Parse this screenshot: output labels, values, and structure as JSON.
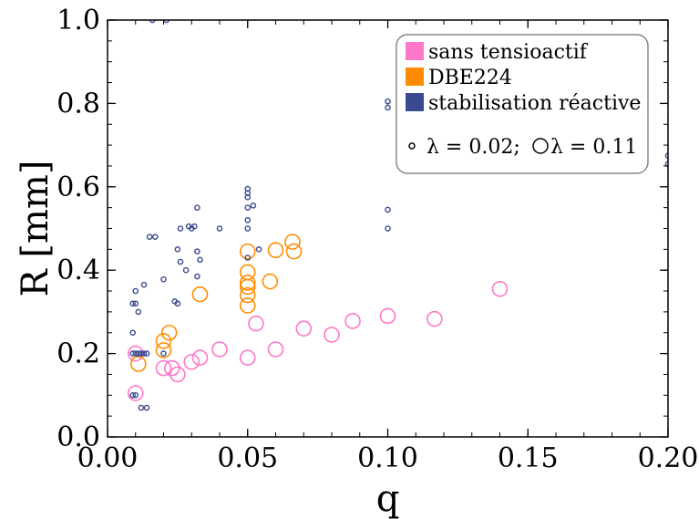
{
  "chart_data": {
    "type": "scatter",
    "xlabel": "q",
    "ylabel": "R [mm]",
    "xlim": [
      0.0,
      0.2
    ],
    "ylim": [
      0.0,
      1.0
    ],
    "x_ticks": [
      "0.00",
      "0.05",
      "0.10",
      "0.15",
      "0.20"
    ],
    "y_ticks": [
      "0.0",
      "0.2",
      "0.4",
      "0.6",
      "0.8",
      "1.0"
    ],
    "grid": false,
    "legend_position": "top-right",
    "legend": {
      "entries": [
        {
          "label": "sans tensioactif",
          "color": "#ff77c8"
        },
        {
          "label": "DBE224",
          "color": "#ff8c00"
        },
        {
          "label": "stabilisation réactive",
          "color": "#3a4a90"
        }
      ],
      "marker_note": "λ = 0.02;",
      "marker_note_2": "λ = 0.11"
    },
    "series": [
      {
        "name": "sans tensioactif",
        "color": "#ff77c8",
        "marker_size_lambda": 0.11,
        "points": [
          [
            0.01,
            0.105
          ],
          [
            0.02,
            0.165
          ],
          [
            0.023,
            0.165
          ],
          [
            0.025,
            0.15
          ],
          [
            0.03,
            0.18
          ],
          [
            0.033,
            0.19
          ],
          [
            0.04,
            0.21
          ],
          [
            0.05,
            0.19
          ],
          [
            0.053,
            0.272
          ],
          [
            0.06,
            0.21
          ],
          [
            0.07,
            0.26
          ],
          [
            0.08,
            0.245
          ],
          [
            0.0875,
            0.278
          ],
          [
            0.1,
            0.29
          ],
          [
            0.1167,
            0.283
          ],
          [
            0.14,
            0.355
          ],
          [
            0.01,
            0.2
          ]
        ]
      },
      {
        "name": "DBE224",
        "color": "#ff8c00",
        "marker_size_lambda": 0.11,
        "points": [
          [
            0.011,
            0.175
          ],
          [
            0.02,
            0.23
          ],
          [
            0.02,
            0.208
          ],
          [
            0.022,
            0.25
          ],
          [
            0.033,
            0.342
          ],
          [
            0.05,
            0.445
          ],
          [
            0.05,
            0.395
          ],
          [
            0.05,
            0.37
          ],
          [
            0.05,
            0.36
          ],
          [
            0.05,
            0.34
          ],
          [
            0.05,
            0.315
          ],
          [
            0.058,
            0.373
          ],
          [
            0.06,
            0.448
          ],
          [
            0.066,
            0.468
          ],
          [
            0.0665,
            0.445
          ]
        ]
      },
      {
        "name": "stabilisation réactive",
        "color": "#3a4a90",
        "marker_size_lambda": 0.02,
        "points": [
          [
            0.009,
            0.32
          ],
          [
            0.009,
            0.25
          ],
          [
            0.009,
            0.2
          ],
          [
            0.009,
            0.1
          ],
          [
            0.01,
            0.1
          ],
          [
            0.01,
            0.35
          ],
          [
            0.01,
            0.32
          ],
          [
            0.01,
            0.2
          ],
          [
            0.011,
            0.3
          ],
          [
            0.011,
            0.2
          ],
          [
            0.012,
            0.2
          ],
          [
            0.012,
            0.07
          ],
          [
            0.013,
            0.365
          ],
          [
            0.013,
            0.2
          ],
          [
            0.014,
            0.2
          ],
          [
            0.014,
            0.07
          ],
          [
            0.015,
            0.48
          ],
          [
            0.016,
            1.0
          ],
          [
            0.017,
            0.48
          ],
          [
            0.02,
            0.378
          ],
          [
            0.02,
            0.2
          ],
          [
            0.021,
            1.0
          ],
          [
            0.024,
            0.325
          ],
          [
            0.025,
            0.32
          ],
          [
            0.025,
            0.45
          ],
          [
            0.026,
            0.5
          ],
          [
            0.026,
            0.42
          ],
          [
            0.028,
            0.4
          ],
          [
            0.029,
            0.505
          ],
          [
            0.03,
            0.5
          ],
          [
            0.031,
            0.505
          ],
          [
            0.032,
            0.385
          ],
          [
            0.032,
            0.55
          ],
          [
            0.032,
            0.445
          ],
          [
            0.033,
            0.425
          ],
          [
            0.04,
            0.5
          ],
          [
            0.05,
            0.595
          ],
          [
            0.05,
            0.585
          ],
          [
            0.05,
            0.575
          ],
          [
            0.05,
            0.55
          ],
          [
            0.05,
            0.52
          ],
          [
            0.05,
            0.5
          ],
          [
            0.05,
            0.43
          ],
          [
            0.052,
            0.555
          ],
          [
            0.054,
            0.45
          ],
          [
            0.1,
            0.805
          ],
          [
            0.1,
            0.79
          ],
          [
            0.1,
            0.545
          ],
          [
            0.1,
            0.5
          ],
          [
            0.2,
            0.675
          ],
          [
            0.2,
            0.655
          ]
        ]
      }
    ]
  }
}
